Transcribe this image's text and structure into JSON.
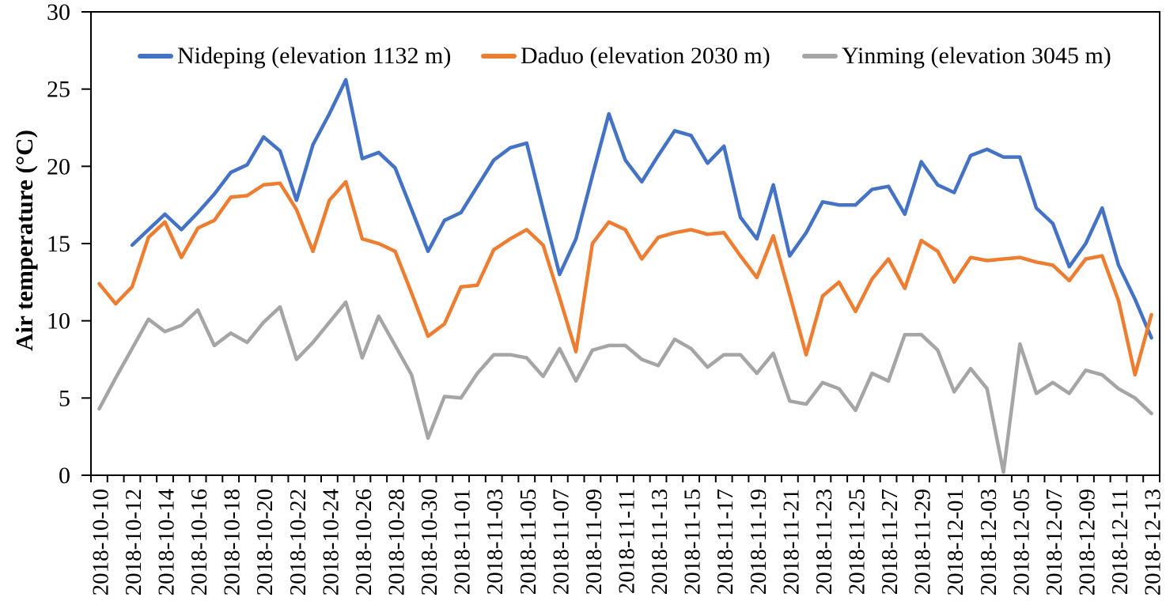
{
  "chart_data": {
    "type": "line",
    "title": "",
    "xlabel": "",
    "ylabel": "Air temperature (°C)",
    "ylim": [
      0,
      30
    ],
    "y_ticks": [
      0,
      5,
      10,
      15,
      20,
      25,
      30
    ],
    "grid": false,
    "legend_position": "top-inside",
    "x_label_every": 2,
    "axis_color": "#000000",
    "categories": [
      "2018-10-10",
      "2018-10-11",
      "2018-10-12",
      "2018-10-13",
      "2018-10-14",
      "2018-10-15",
      "2018-10-16",
      "2018-10-17",
      "2018-10-18",
      "2018-10-19",
      "2018-10-20",
      "2018-10-21",
      "2018-10-22",
      "2018-10-23",
      "2018-10-24",
      "2018-10-25",
      "2018-10-26",
      "2018-10-27",
      "2018-10-28",
      "2018-10-29",
      "2018-10-30",
      "2018-10-31",
      "2018-11-01",
      "2018-11-02",
      "2018-11-03",
      "2018-11-04",
      "2018-11-05",
      "2018-11-06",
      "2018-11-07",
      "2018-11-08",
      "2018-11-09",
      "2018-11-10",
      "2018-11-11",
      "2018-11-12",
      "2018-11-13",
      "2018-11-14",
      "2018-11-15",
      "2018-11-16",
      "2018-11-17",
      "2018-11-18",
      "2018-11-19",
      "2018-11-20",
      "2018-11-21",
      "2018-11-22",
      "2018-11-23",
      "2018-11-24",
      "2018-11-25",
      "2018-11-26",
      "2018-11-27",
      "2018-11-28",
      "2018-11-29",
      "2018-11-30",
      "2018-12-01",
      "2018-12-02",
      "2018-12-03",
      "2018-12-04",
      "2018-12-05",
      "2018-12-06",
      "2018-12-07",
      "2018-12-08",
      "2018-12-09",
      "2018-12-10",
      "2018-12-11",
      "2018-12-12",
      "2018-12-13"
    ],
    "series": [
      {
        "name": "Nideping (elevation 1132 m)",
        "color": "#4472C4",
        "values": [
          null,
          null,
          14.9,
          15.9,
          16.9,
          15.9,
          17.0,
          18.2,
          19.6,
          20.1,
          21.9,
          21.0,
          17.8,
          21.4,
          23.4,
          25.6,
          20.5,
          20.9,
          19.9,
          17.2,
          14.5,
          16.5,
          17.0,
          18.7,
          20.4,
          21.2,
          21.5,
          17.2,
          13.0,
          15.3,
          19.4,
          23.4,
          20.4,
          19.0,
          20.7,
          22.3,
          22.0,
          20.2,
          21.3,
          16.7,
          15.3,
          18.8,
          14.2,
          15.7,
          17.7,
          17.5,
          17.5,
          18.5,
          18.7,
          16.9,
          20.3,
          18.8,
          18.3,
          20.7,
          21.1,
          20.6,
          20.6,
          17.3,
          16.3,
          13.5,
          15.0,
          17.3,
          13.6,
          11.4,
          8.9
        ]
      },
      {
        "name": "Daduo (elevation 2030 m)",
        "color": "#ED7D31",
        "values": [
          12.4,
          11.1,
          12.2,
          15.4,
          16.4,
          14.1,
          16.0,
          16.5,
          18.0,
          18.1,
          18.8,
          18.9,
          17.2,
          14.5,
          17.8,
          19.0,
          15.3,
          15.0,
          14.5,
          11.8,
          9.0,
          9.8,
          12.2,
          12.3,
          14.6,
          15.3,
          15.9,
          14.9,
          11.5,
          8.0,
          15.0,
          16.4,
          15.9,
          14.0,
          15.4,
          15.7,
          15.9,
          15.6,
          15.7,
          14.2,
          12.8,
          15.5,
          11.7,
          7.8,
          11.6,
          12.5,
          10.6,
          12.7,
          14.0,
          12.1,
          15.2,
          14.5,
          12.5,
          14.1,
          13.9,
          14.0,
          14.1,
          13.8,
          13.6,
          12.6,
          14.0,
          14.2,
          11.3,
          6.5,
          10.4
        ]
      },
      {
        "name": "Yinming (elevation 3045 m)",
        "color": "#A5A5A5",
        "values": [
          4.3,
          6.3,
          8.2,
          10.1,
          9.3,
          9.7,
          10.7,
          8.4,
          9.2,
          8.6,
          9.9,
          10.9,
          7.5,
          8.6,
          9.9,
          11.2,
          7.6,
          10.3,
          8.4,
          6.5,
          2.4,
          5.1,
          5.0,
          6.6,
          7.8,
          7.8,
          7.6,
          6.4,
          8.2,
          6.1,
          8.1,
          8.4,
          8.4,
          7.5,
          7.1,
          8.8,
          8.2,
          7.0,
          7.8,
          7.8,
          6.6,
          7.9,
          4.8,
          4.6,
          6.0,
          5.6,
          4.2,
          6.6,
          6.1,
          9.1,
          9.1,
          8.1,
          5.4,
          6.9,
          5.6,
          0.2,
          8.5,
          5.3,
          6.0,
          5.3,
          6.8,
          6.5,
          5.6,
          5.0,
          4.0
        ]
      }
    ]
  }
}
